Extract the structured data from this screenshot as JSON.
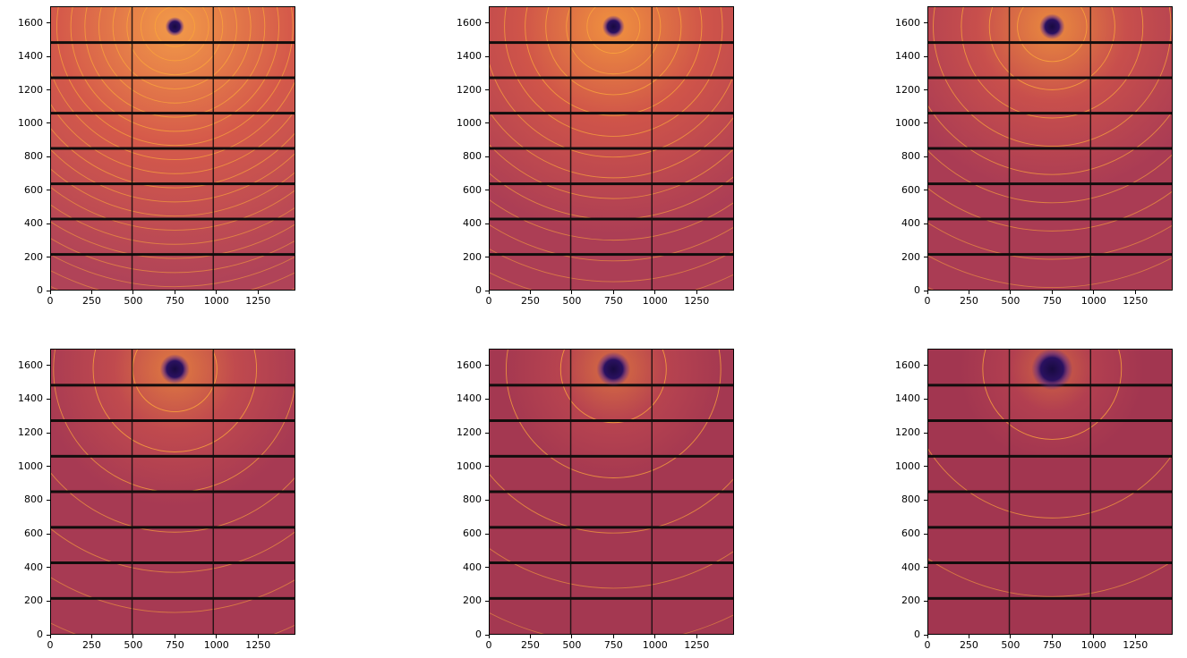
{
  "figure": {
    "background": "#ffffff",
    "rows": 2,
    "cols": 3,
    "title": ""
  },
  "chart_data": {
    "type": "heatmap",
    "subtype": "2x3 grid of simulated powder-diffraction detector images with concentric Debye-Scherrer rings, detector module gaps and a beamstop shadow",
    "title": "",
    "xlabel": "",
    "ylabel": "",
    "legend": "none",
    "grid": "off",
    "axes": {
      "x_ticks": [
        0,
        250,
        500,
        750,
        1000,
        1250
      ],
      "y_ticks": [
        0,
        200,
        400,
        600,
        800,
        1000,
        1200,
        1400,
        1600
      ],
      "xlim": [
        0,
        1475
      ],
      "ylim": [
        0,
        1700
      ]
    },
    "detector": {
      "beam_center": {
        "x": 750,
        "y": 1583
      },
      "module_gaps_horizontal_y": [
        212,
        425,
        637,
        850,
        1062,
        1275,
        1487
      ],
      "module_gaps_vertical_x": [
        491,
        983
      ],
      "gap_thickness_horizontal": 16,
      "gap_thickness_vertical": 8
    },
    "colors": {
      "ring": "#f9a23c",
      "module_gap": "#120d0d",
      "beamstop_core": "#180a40",
      "beamstop_mid": "#2a1160",
      "beamstop_halo": "#5b2a85",
      "spine": "#000000",
      "tick_label": "#000000"
    },
    "panels": [
      {
        "id": "panel-1",
        "row": 0,
        "col": 0,
        "core_color": "#f29a48",
        "mid_color": "#d55a4a",
        "far_color": "#b04358",
        "glow_radius": 1550,
        "beamstop_radius": 36,
        "ring_radii": [
          120,
          205,
          290,
          375,
          460,
          545,
          630,
          715,
          800,
          885,
          970,
          1055,
          1140,
          1225,
          1310,
          1395,
          1480,
          1565,
          1650,
          1735
        ]
      },
      {
        "id": "panel-2",
        "row": 0,
        "col": 1,
        "core_color": "#f0913f",
        "mid_color": "#cf5449",
        "far_color": "#ac3e55",
        "glow_radius": 1250,
        "beamstop_radius": 42,
        "ring_radii": [
          160,
          285,
          410,
          535,
          660,
          785,
          910,
          1035,
          1160,
          1285,
          1410,
          1535,
          1660,
          1785
        ]
      },
      {
        "id": "panel-3",
        "row": 0,
        "col": 2,
        "core_color": "#ea8a3e",
        "mid_color": "#c84f4c",
        "far_color": "#aa3c54",
        "glow_radius": 1000,
        "beamstop_radius": 48,
        "ring_radii": [
          210,
          380,
          550,
          720,
          890,
          1060,
          1230,
          1400,
          1570,
          1740
        ]
      },
      {
        "id": "panel-4",
        "row": 1,
        "col": 0,
        "core_color": "#e07b40",
        "mid_color": "#c04a4e",
        "far_color": "#a73a53",
        "glow_radius": 820,
        "beamstop_radius": 56,
        "ring_radii": [
          255,
          495,
          735,
          975,
          1215,
          1455,
          1695
        ]
      },
      {
        "id": "panel-5",
        "row": 1,
        "col": 1,
        "core_color": "#d86f41",
        "mid_color": "#b8444f",
        "far_color": "#a43851",
        "glow_radius": 680,
        "beamstop_radius": 64,
        "ring_radii": [
          320,
          650,
          980,
          1310,
          1640
        ]
      },
      {
        "id": "panel-6",
        "row": 1,
        "col": 2,
        "core_color": "#d06542",
        "mid_color": "#b23f50",
        "far_color": "#a23650",
        "glow_radius": 560,
        "beamstop_radius": 78,
        "ring_radii": [
          420,
          890,
          1360,
          1830
        ]
      }
    ]
  }
}
